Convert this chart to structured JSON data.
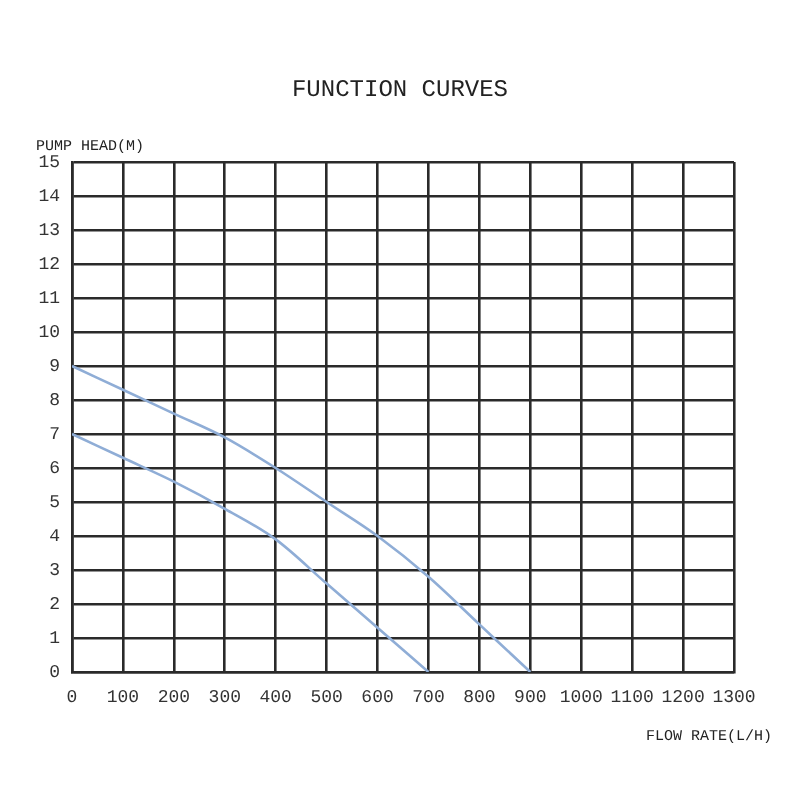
{
  "chart_data": {
    "type": "line",
    "title": "FUNCTION CURVES",
    "xlabel": "FLOW RATE(L/H)",
    "ylabel": "PUMP HEAD(M)",
    "series": [
      {
        "color": "#8fadd6",
        "x": [
          0,
          100,
          200,
          300,
          400,
          500,
          600,
          700,
          800,
          900
        ],
        "values": [
          9,
          8.3,
          7.6,
          6.9,
          6.0,
          5.0,
          4.0,
          2.8,
          1.4,
          0
        ]
      },
      {
        "color": "#8fadd6",
        "x": [
          0,
          100,
          200,
          300,
          400,
          500,
          600,
          700
        ],
        "values": [
          7,
          6.3,
          5.6,
          4.8,
          3.9,
          2.6,
          1.3,
          0
        ]
      }
    ],
    "xlim": [
      0,
      1300
    ],
    "xticks": [
      0,
      100,
      200,
      300,
      400,
      500,
      600,
      700,
      800,
      900,
      1000,
      1100,
      1200,
      1300
    ],
    "ylim": [
      0,
      15
    ],
    "yticks": [
      0,
      1,
      2,
      3,
      4,
      5,
      6,
      7,
      8,
      9,
      10,
      11,
      12,
      13,
      14,
      15
    ],
    "grid": true,
    "legend": false,
    "marker": "none",
    "line_style": "solid"
  }
}
